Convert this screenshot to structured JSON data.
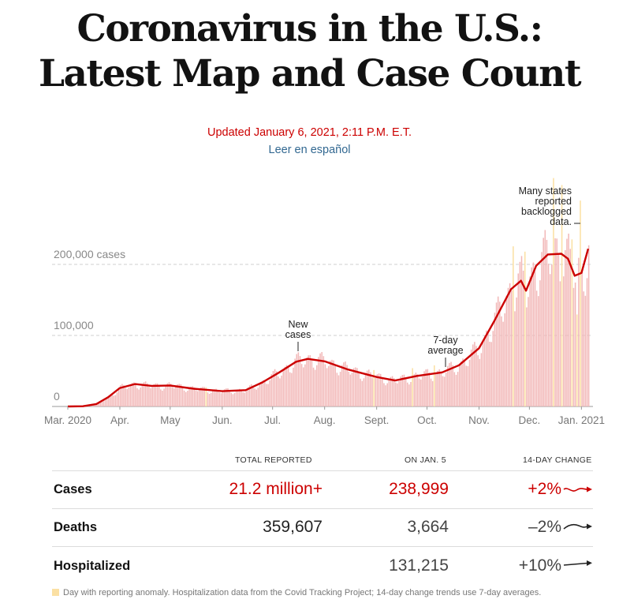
{
  "header": {
    "title_line1": "Coronavirus in the U.S.:",
    "title_line2": "Latest Map and Case Count",
    "updated": "Updated January 6, 2021, 2:11 P.M. E.T.",
    "spanish_link": "Leer en español"
  },
  "chart_data": {
    "type": "bar",
    "series": [
      {
        "name": "New cases",
        "display": "bars",
        "color": "#f2b8b8",
        "anomaly_color": "#fbe0a3"
      },
      {
        "name": "7-day average",
        "display": "line",
        "color": "#cc0000"
      }
    ],
    "x_ticks": [
      "Mar. 2020",
      "Apr.",
      "May",
      "Jun.",
      "Jul.",
      "Aug.",
      "Sept.",
      "Oct.",
      "Nov.",
      "Dec.",
      "Jan. 2021"
    ],
    "y_ticks": [
      "0",
      "100,000",
      "200,000 cases"
    ],
    "y_tick_values": [
      0,
      100000,
      200000
    ],
    "ylim": [
      0,
      240000
    ],
    "gridlines": true,
    "annotations": [
      "New cases",
      "7-day average",
      "Many states reported backlogged data."
    ],
    "seven_day_average": [
      {
        "date": "2020-03-01",
        "value": 0
      },
      {
        "date": "2020-03-10",
        "value": 300
      },
      {
        "date": "2020-03-18",
        "value": 3500
      },
      {
        "date": "2020-03-25",
        "value": 13000
      },
      {
        "date": "2020-04-01",
        "value": 26000
      },
      {
        "date": "2020-04-10",
        "value": 31500
      },
      {
        "date": "2020-04-20",
        "value": 29000
      },
      {
        "date": "2020-05-01",
        "value": 29500
      },
      {
        "date": "2020-05-15",
        "value": 25000
      },
      {
        "date": "2020-06-01",
        "value": 21500
      },
      {
        "date": "2020-06-15",
        "value": 23000
      },
      {
        "date": "2020-06-25",
        "value": 34000
      },
      {
        "date": "2020-07-05",
        "value": 48000
      },
      {
        "date": "2020-07-15",
        "value": 63000
      },
      {
        "date": "2020-07-22",
        "value": 67000
      },
      {
        "date": "2020-08-01",
        "value": 63500
      },
      {
        "date": "2020-08-15",
        "value": 52000
      },
      {
        "date": "2020-09-01",
        "value": 41500
      },
      {
        "date": "2020-09-12",
        "value": 36500
      },
      {
        "date": "2020-09-25",
        "value": 43000
      },
      {
        "date": "2020-10-10",
        "value": 48000
      },
      {
        "date": "2020-10-20",
        "value": 58000
      },
      {
        "date": "2020-11-01",
        "value": 82000
      },
      {
        "date": "2020-11-10",
        "value": 120000
      },
      {
        "date": "2020-11-20",
        "value": 165000
      },
      {
        "date": "2020-11-26",
        "value": 177000
      },
      {
        "date": "2020-11-29",
        "value": 163000
      },
      {
        "date": "2020-12-05",
        "value": 198000
      },
      {
        "date": "2020-12-12",
        "value": 214000
      },
      {
        "date": "2020-12-20",
        "value": 215000
      },
      {
        "date": "2020-12-24",
        "value": 208000
      },
      {
        "date": "2020-12-28",
        "value": 184000
      },
      {
        "date": "2021-01-01",
        "value": 188000
      },
      {
        "date": "2021-01-05",
        "value": 222000
      }
    ]
  },
  "table": {
    "headers": {
      "total": "TOTAL REPORTED",
      "day": "ON JAN. 5",
      "change": "14-DAY CHANGE"
    },
    "rows": [
      {
        "label": "Cases",
        "total": "21.2 million+",
        "day": "238,999",
        "change": "+2%",
        "color": "#cc0000"
      },
      {
        "label": "Deaths",
        "total": "359,607",
        "day": "3,664",
        "change": "–2%",
        "color": "#121212"
      },
      {
        "label": "Hospitalized",
        "total": "",
        "day": "131,215",
        "change": "+10%",
        "color": "#121212"
      }
    ]
  },
  "footnote": "Day with reporting anomaly. Hospitalization data from the Covid Tracking Project; 14-day change trends use 7-day averages."
}
